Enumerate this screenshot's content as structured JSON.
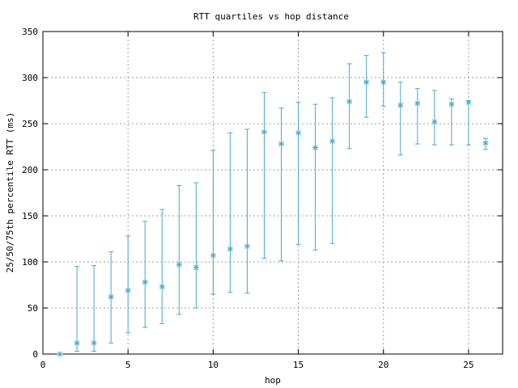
{
  "chart_data": {
    "type": "scatter",
    "title": "RTT quartiles vs hop distance",
    "xlabel": "hop",
    "ylabel": "25/50/75th percentile RTT (ms)",
    "xlim": [
      0,
      27
    ],
    "ylim": [
      0,
      350
    ],
    "xticks": [
      0,
      5,
      10,
      15,
      20,
      25
    ],
    "yticks": [
      0,
      50,
      100,
      150,
      200,
      250,
      300,
      350
    ],
    "grid": true,
    "series_color": "#4aa8c8",
    "points": [
      {
        "x": 1,
        "p25": 0,
        "p50": 0,
        "p75": 0
      },
      {
        "x": 2,
        "p25": 3,
        "p50": 12,
        "p75": 95
      },
      {
        "x": 3,
        "p25": 3,
        "p50": 12,
        "p75": 96
      },
      {
        "x": 4,
        "p25": 12,
        "p50": 62,
        "p75": 111
      },
      {
        "x": 5,
        "p25": 23,
        "p50": 69,
        "p75": 128
      },
      {
        "x": 6,
        "p25": 29,
        "p50": 78,
        "p75": 144
      },
      {
        "x": 7,
        "p25": 33,
        "p50": 73,
        "p75": 157
      },
      {
        "x": 8,
        "p25": 43,
        "p50": 97,
        "p75": 183
      },
      {
        "x": 9,
        "p25": 50,
        "p50": 94,
        "p75": 186
      },
      {
        "x": 10,
        "p25": 65,
        "p50": 107,
        "p75": 221
      },
      {
        "x": 11,
        "p25": 67,
        "p50": 114,
        "p75": 240
      },
      {
        "x": 12,
        "p25": 66,
        "p50": 117,
        "p75": 244
      },
      {
        "x": 13,
        "p25": 104,
        "p50": 241,
        "p75": 284
      },
      {
        "x": 14,
        "p25": 101,
        "p50": 228,
        "p75": 267
      },
      {
        "x": 15,
        "p25": 119,
        "p50": 240,
        "p75": 273
      },
      {
        "x": 16,
        "p25": 113,
        "p50": 224,
        "p75": 271
      },
      {
        "x": 17,
        "p25": 120,
        "p50": 231,
        "p75": 278
      },
      {
        "x": 18,
        "p25": 223,
        "p50": 274,
        "p75": 315
      },
      {
        "x": 19,
        "p25": 257,
        "p50": 295,
        "p75": 324
      },
      {
        "x": 20,
        "p25": 269,
        "p50": 295,
        "p75": 327
      },
      {
        "x": 21,
        "p25": 216,
        "p50": 270,
        "p75": 295
      },
      {
        "x": 22,
        "p25": 228,
        "p50": 272,
        "p75": 288
      },
      {
        "x": 23,
        "p25": 227,
        "p50": 252,
        "p75": 286
      },
      {
        "x": 24,
        "p25": 227,
        "p50": 271,
        "p75": 277
      },
      {
        "x": 25,
        "p25": 227,
        "p50": 273,
        "p75": 275
      },
      {
        "x": 26,
        "p25": 222,
        "p50": 229,
        "p75": 234
      }
    ]
  }
}
